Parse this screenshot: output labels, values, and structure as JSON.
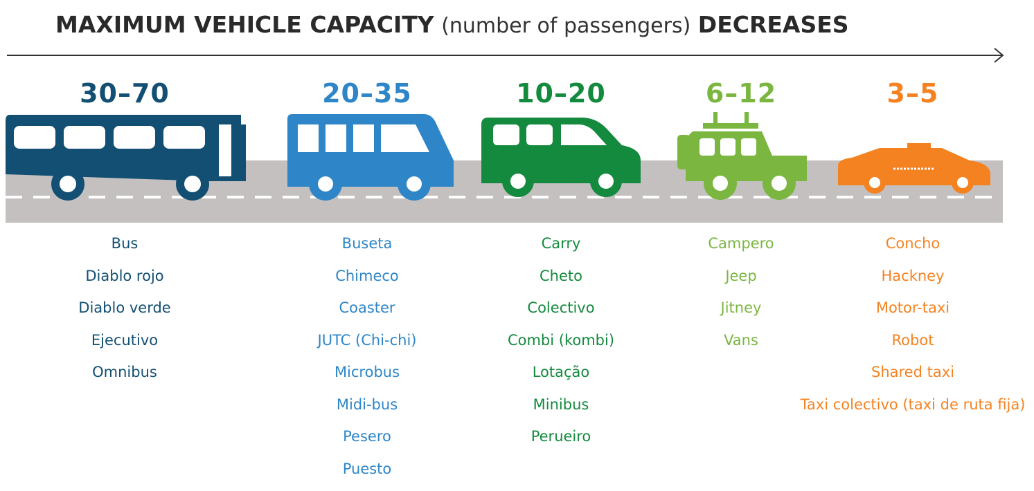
{
  "header": {
    "title_bold_1": "MAXIMUM VEHICLE CAPACITY",
    "title_light": "(number of passengers)",
    "title_bold_2": "DECREASES"
  },
  "groups": [
    {
      "range": "30–70",
      "color": "#134f72",
      "names": [
        "Bus",
        "Diablo rojo",
        "Diablo verde",
        "Ejecutivo",
        "Omnibus"
      ]
    },
    {
      "range": "20–35",
      "color": "#2e86c8",
      "names": [
        "Buseta",
        "Chimeco",
        "Coaster",
        "JUTC (Chi-chi)",
        "Microbus",
        "Midi-bus",
        "Pesero",
        "Puesto"
      ]
    },
    {
      "range": "10–20",
      "color": "#148a3e",
      "names": [
        "Carry",
        "Cheto",
        "Colectivo",
        "Combi (kombi)",
        "Lotação",
        "Minibus",
        "Perueiro"
      ]
    },
    {
      "range": "6–12",
      "color": "#7ab640",
      "names": [
        "Campero",
        "Jeep",
        "Jitney",
        "Vans"
      ]
    },
    {
      "range": "3–5",
      "color": "#f58220",
      "names": [
        "Concho",
        "Hackney",
        "Motor-taxi",
        "Robot",
        "Shared taxi",
        "Taxi colectivo (taxi de ruta fija)"
      ]
    }
  ]
}
